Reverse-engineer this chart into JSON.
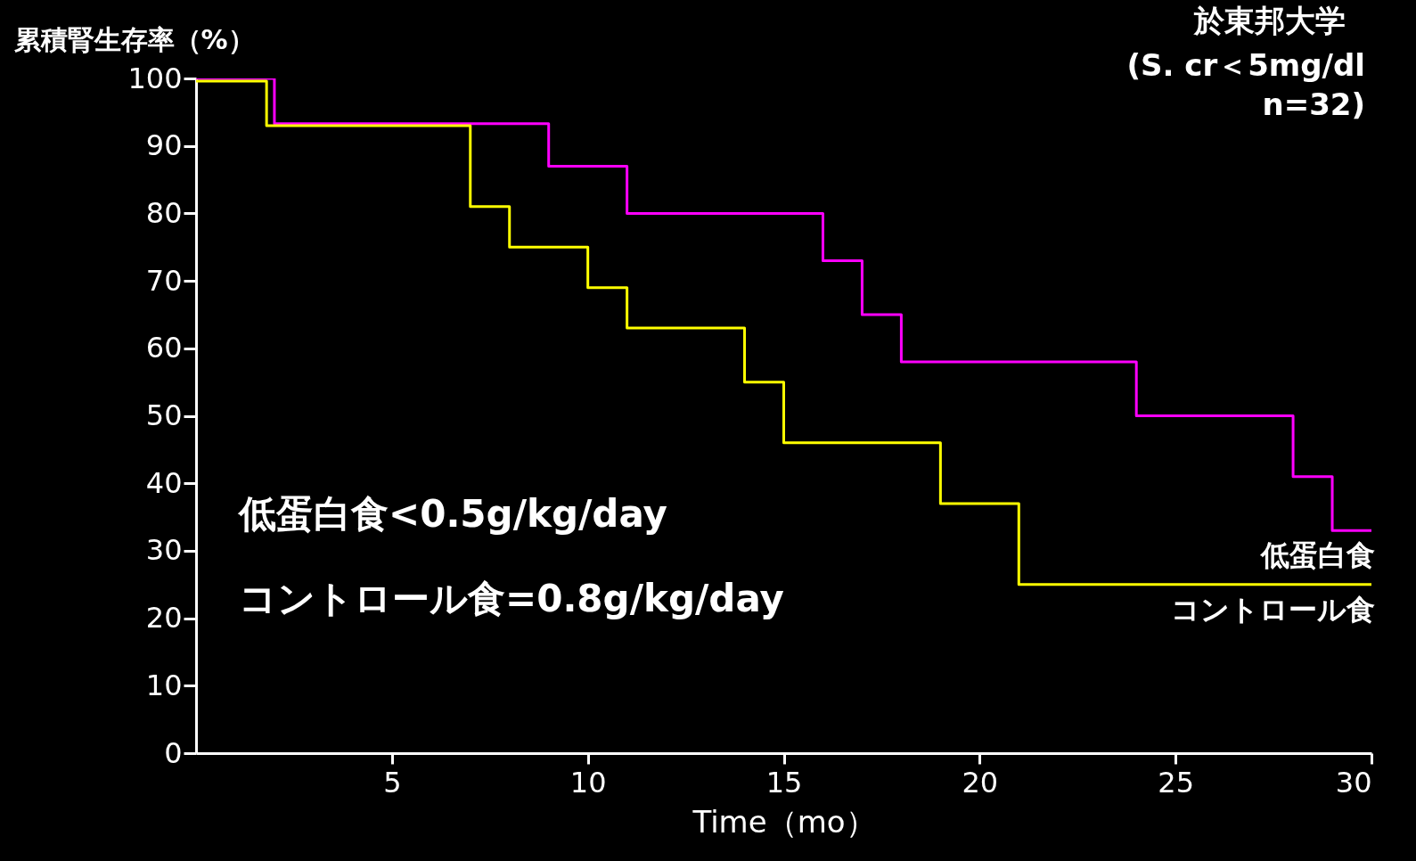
{
  "chart_data": {
    "type": "step",
    "ylabel": "累積腎生存率（%）",
    "xlabel": "Time（mo）",
    "annotations": [
      "於東邦大学",
      "(S. cr＜5mg/dl\nn=32)",
      "低蛋白食<0.5g/kg/day",
      "コントロール食=0.8g/kg/day"
    ],
    "series": [
      {
        "name": "低蛋白食",
        "color": "#ff00ff",
        "x": [
          0,
          2,
          9,
          11,
          16,
          17,
          18,
          24,
          28,
          29,
          30
        ],
        "values": [
          100,
          93.3,
          87,
          80,
          73,
          65,
          58,
          50,
          41,
          33,
          33
        ]
      },
      {
        "name": "コントロール食",
        "color": "#ffff00",
        "x": [
          0,
          1.8,
          7,
          8,
          10,
          11,
          14,
          15,
          19,
          21,
          30
        ],
        "values": [
          99.6,
          93,
          81,
          75,
          69,
          63,
          55,
          46,
          37,
          25,
          25
        ]
      }
    ],
    "xlim": [
      0,
      30
    ],
    "xticks": [
      5,
      10,
      15,
      20,
      25,
      30
    ],
    "ylim": [
      0,
      100
    ],
    "yticks": [
      0,
      10,
      20,
      30,
      40,
      50,
      60,
      70,
      80,
      90,
      100
    ],
    "grid": false,
    "legend": false
  }
}
